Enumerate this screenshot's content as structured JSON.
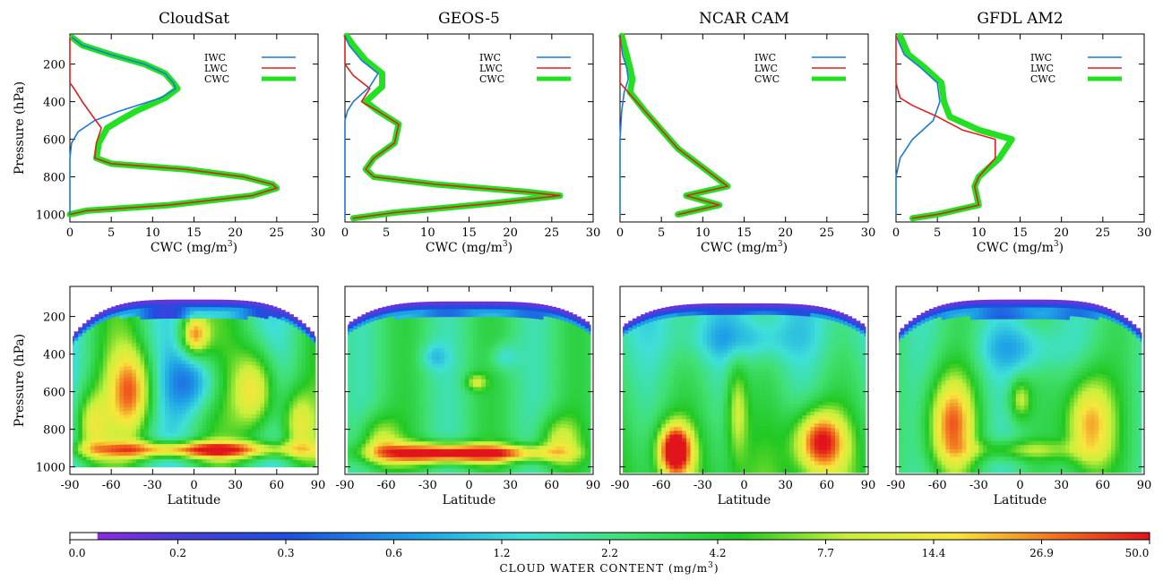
{
  "colors": {
    "iwc": "#1e78d8",
    "lwc": "#e0201c",
    "cwc": "#22e022"
  },
  "legend": [
    "IWC",
    "LWC",
    "CWC"
  ],
  "colorbar": {
    "ticks": [
      "0.0",
      "0.2",
      "0.3",
      "0.6",
      "1.2",
      "2.2",
      "4.2",
      "7.7",
      "14.4",
      "26.9",
      "50.0"
    ],
    "label": "CLOUD  WATER  CONTENT  (mg/m",
    "label_sup": "3",
    "label_end": ")"
  },
  "chart_data": [
    {
      "type": "line",
      "title": "CloudSat",
      "xlabel": "CWC (mg/m",
      "xlabel_sup": "3",
      "xlabel_end": ")",
      "ylabel": "Pressure (hPa)",
      "xlim": [
        0,
        30
      ],
      "ylim": [
        1040,
        40
      ],
      "xticks": [
        0,
        5,
        10,
        15,
        20,
        25,
        30
      ],
      "yticks": [
        200,
        400,
        600,
        800,
        1000
      ],
      "series": [
        {
          "name": "IWC",
          "points": [
            [
              0.3,
              60
            ],
            [
              1.5,
              100
            ],
            [
              5,
              150
            ],
            [
              9,
              200
            ],
            [
              11.5,
              250
            ],
            [
              12.5,
              300
            ],
            [
              12.8,
              330
            ],
            [
              11,
              380
            ],
            [
              6,
              450
            ],
            [
              3,
              500
            ],
            [
              1,
              560
            ],
            [
              0.2,
              620
            ],
            [
              0,
              700
            ],
            [
              0,
              1000
            ]
          ]
        },
        {
          "name": "LWC",
          "points": [
            [
              0,
              60
            ],
            [
              0,
              300
            ],
            [
              0.5,
              330
            ],
            [
              1.5,
              400
            ],
            [
              2.8,
              480
            ],
            [
              3.8,
              540
            ],
            [
              3.2,
              620
            ],
            [
              3,
              700
            ],
            [
              5,
              730
            ],
            [
              14,
              760
            ],
            [
              21,
              800
            ],
            [
              24.5,
              840
            ],
            [
              25,
              860
            ],
            [
              22,
              900
            ],
            [
              12,
              950
            ],
            [
              2,
              980
            ],
            [
              0,
              1000
            ]
          ]
        },
        {
          "name": "CWC",
          "points": [
            [
              0.3,
              60
            ],
            [
              1.5,
              100
            ],
            [
              5,
              150
            ],
            [
              9,
              200
            ],
            [
              11.5,
              250
            ],
            [
              12.5,
              300
            ],
            [
              13,
              330
            ],
            [
              11.5,
              380
            ],
            [
              8,
              450
            ],
            [
              6,
              500
            ],
            [
              4.5,
              540
            ],
            [
              3.5,
              620
            ],
            [
              3.2,
              700
            ],
            [
              5,
              730
            ],
            [
              14,
              760
            ],
            [
              21,
              800
            ],
            [
              24.5,
              840
            ],
            [
              25,
              860
            ],
            [
              22,
              900
            ],
            [
              12,
              950
            ],
            [
              2,
              980
            ],
            [
              0,
              1000
            ]
          ]
        }
      ]
    },
    {
      "type": "line",
      "title": "GEOS-5",
      "xlabel": "CWC (mg/m",
      "xlabel_sup": "3",
      "xlabel_end": ")",
      "ylabel": "",
      "xlim": [
        0,
        30
      ],
      "ylim": [
        1040,
        40
      ],
      "xticks": [
        0,
        5,
        10,
        15,
        20,
        25,
        30
      ],
      "yticks": [
        200,
        400,
        600,
        800,
        1000
      ],
      "series": [
        {
          "name": "IWC",
          "points": [
            [
              0,
              50
            ],
            [
              0.5,
              100
            ],
            [
              2,
              180
            ],
            [
              4,
              250
            ],
            [
              3,
              320
            ],
            [
              1,
              400
            ],
            [
              0.3,
              450
            ],
            [
              0,
              500
            ],
            [
              0,
              1020
            ]
          ]
        },
        {
          "name": "LWC",
          "points": [
            [
              0,
              50
            ],
            [
              0,
              200
            ],
            [
              1,
              260
            ],
            [
              3,
              330
            ],
            [
              2,
              400
            ],
            [
              4,
              450
            ],
            [
              6.5,
              520
            ],
            [
              6,
              620
            ],
            [
              3.5,
              700
            ],
            [
              2.5,
              760
            ],
            [
              3.5,
              800
            ],
            [
              11,
              840
            ],
            [
              22,
              880
            ],
            [
              26,
              900
            ],
            [
              18,
              940
            ],
            [
              6,
              990
            ],
            [
              1,
              1020
            ]
          ]
        },
        {
          "name": "CWC",
          "points": [
            [
              0.2,
              50
            ],
            [
              1,
              100
            ],
            [
              2.5,
              180
            ],
            [
              4.5,
              250
            ],
            [
              4.5,
              320
            ],
            [
              2.5,
              400
            ],
            [
              4,
              450
            ],
            [
              6.5,
              520
            ],
            [
              6,
              620
            ],
            [
              3.5,
              700
            ],
            [
              2.5,
              760
            ],
            [
              3.5,
              800
            ],
            [
              11,
              840
            ],
            [
              22,
              880
            ],
            [
              26,
              900
            ],
            [
              18,
              940
            ],
            [
              6,
              990
            ],
            [
              1,
              1020
            ]
          ]
        }
      ]
    },
    {
      "type": "line",
      "title": "NCAR  CAM",
      "xlabel": "CWC (mg/m",
      "xlabel_sup": "3",
      "xlabel_end": ")",
      "ylabel": "",
      "xlim": [
        0,
        30
      ],
      "ylim": [
        1040,
        40
      ],
      "xticks": [
        0,
        5,
        10,
        15,
        20,
        25,
        30
      ],
      "yticks": [
        200,
        400,
        600,
        800,
        1000
      ],
      "series": [
        {
          "name": "IWC",
          "points": [
            [
              0,
              50
            ],
            [
              0.3,
              150
            ],
            [
              0.8,
              220
            ],
            [
              1,
              280
            ],
            [
              0.5,
              350
            ],
            [
              0.2,
              450
            ],
            [
              0,
              600
            ],
            [
              0,
              1000
            ]
          ]
        },
        {
          "name": "LWC",
          "points": [
            [
              0,
              50
            ],
            [
              0,
              300
            ],
            [
              1,
              350
            ],
            [
              3,
              450
            ],
            [
              5,
              550
            ],
            [
              7,
              650
            ],
            [
              10,
              750
            ],
            [
              13,
              850
            ],
            [
              8,
              900
            ],
            [
              12,
              950
            ],
            [
              7,
              1000
            ]
          ]
        },
        {
          "name": "CWC",
          "points": [
            [
              0.2,
              50
            ],
            [
              0.8,
              150
            ],
            [
              1.2,
              220
            ],
            [
              1.5,
              280
            ],
            [
              1.2,
              350
            ],
            [
              3,
              450
            ],
            [
              5,
              550
            ],
            [
              7,
              650
            ],
            [
              10,
              750
            ],
            [
              13,
              850
            ],
            [
              8,
              900
            ],
            [
              12,
              950
            ],
            [
              7,
              1000
            ]
          ]
        }
      ]
    },
    {
      "type": "line",
      "title": "GFDL  AM2",
      "xlabel": "CWC (mg/m",
      "xlabel_sup": "3",
      "xlabel_end": ")",
      "ylabel": "",
      "xlim": [
        0,
        30
      ],
      "ylim": [
        1040,
        40
      ],
      "xticks": [
        0,
        5,
        10,
        15,
        20,
        25,
        30
      ],
      "yticks": [
        200,
        400,
        600,
        800,
        1000
      ],
      "series": [
        {
          "name": "IWC",
          "points": [
            [
              0,
              50
            ],
            [
              1,
              150
            ],
            [
              3,
              220
            ],
            [
              5,
              300
            ],
            [
              5.3,
              400
            ],
            [
              4.5,
              500
            ],
            [
              2,
              600
            ],
            [
              0.5,
              700
            ],
            [
              0,
              800
            ],
            [
              0,
              1000
            ]
          ]
        },
        {
          "name": "LWC",
          "points": [
            [
              0,
              50
            ],
            [
              0,
              300
            ],
            [
              0.5,
              380
            ],
            [
              2,
              420
            ],
            [
              5,
              480
            ],
            [
              8,
              550
            ],
            [
              12,
              600
            ],
            [
              12,
              700
            ],
            [
              10,
              800
            ],
            [
              9.5,
              850
            ],
            [
              10,
              950
            ],
            [
              5,
              1000
            ],
            [
              2,
              1020
            ]
          ]
        },
        {
          "name": "CWC",
          "points": [
            [
              0.5,
              50
            ],
            [
              1.5,
              150
            ],
            [
              3.5,
              220
            ],
            [
              5.5,
              300
            ],
            [
              5.8,
              400
            ],
            [
              6.5,
              480
            ],
            [
              10,
              550
            ],
            [
              14,
              600
            ],
            [
              12.5,
              700
            ],
            [
              10,
              800
            ],
            [
              9.5,
              850
            ],
            [
              10,
              950
            ],
            [
              5,
              1000
            ],
            [
              2,
              1020
            ]
          ]
        }
      ]
    },
    {
      "type": "heatmap",
      "title": "CloudSat",
      "xlabel": "Latitude",
      "ylabel": "Pressure (hPa)",
      "xlim": [
        -90,
        90
      ],
      "ylim": [
        1040,
        40
      ],
      "xticks": [
        -90,
        -60,
        -30,
        0,
        30,
        60,
        90
      ],
      "yticks": [
        200,
        400,
        600,
        800,
        1000
      ],
      "top_pressure": 110,
      "bottom_pressure": 1000,
      "edge_pressure": 300
    },
    {
      "type": "heatmap",
      "title": "GEOS-5",
      "xlabel": "Latitude",
      "ylabel": "",
      "xlim": [
        -90,
        90
      ],
      "ylim": [
        1040,
        40
      ],
      "xticks": [
        -90,
        -60,
        -30,
        0,
        30,
        60,
        90
      ],
      "yticks": [
        200,
        400,
        600,
        800,
        1000
      ],
      "top_pressure": 120,
      "bottom_pressure": 1030,
      "edge_pressure": 240
    },
    {
      "type": "heatmap",
      "title": "NCAR  CAM",
      "xlabel": "Latitude",
      "ylabel": "",
      "xlim": [
        -90,
        90
      ],
      "ylim": [
        1040,
        40
      ],
      "xticks": [
        -90,
        -60,
        -30,
        0,
        30,
        60,
        90
      ],
      "yticks": [
        200,
        400,
        600,
        800,
        1000
      ],
      "top_pressure": 130,
      "bottom_pressure": 1030,
      "edge_pressure": 250
    },
    {
      "type": "heatmap",
      "title": "GFDL  AM2",
      "xlabel": "Latitude",
      "ylabel": "",
      "xlim": [
        -90,
        90
      ],
      "ylim": [
        1040,
        40
      ],
      "xticks": [
        -90,
        -60,
        -30,
        0,
        30,
        60,
        90
      ],
      "yticks": [
        200,
        400,
        600,
        800,
        1000
      ],
      "top_pressure": 110,
      "bottom_pressure": 1030,
      "edge_pressure": 280
    }
  ]
}
